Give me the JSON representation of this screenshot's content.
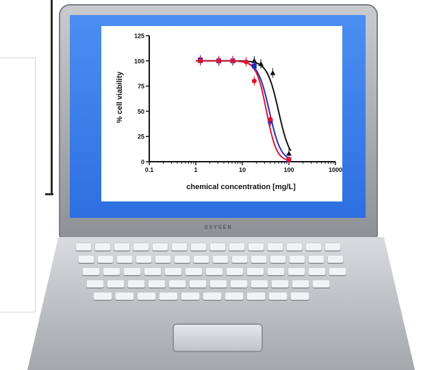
{
  "laptop": {
    "brand": "OXYGEN"
  },
  "chart_data": {
    "type": "line",
    "title": "",
    "xlabel": "chemical concentration [mg/L]",
    "ylabel": "% cell viability",
    "xscale": "log",
    "xlim": [
      0.1,
      1000
    ],
    "ylim": [
      0,
      125
    ],
    "x_ticks": [
      "0.1",
      "1",
      "10",
      "100",
      "1000"
    ],
    "y_ticks": [
      "0",
      "25",
      "50",
      "75",
      "100",
      "125"
    ],
    "grid": false,
    "legend": "none",
    "series": [
      {
        "color": "#111111",
        "marker": "triangle",
        "ic50": 60,
        "hill": 3.5,
        "x": [
          1.25,
          3.125,
          6.25,
          18,
          25,
          45,
          100
        ],
        "y": [
          100,
          100,
          100,
          100,
          97,
          88,
          8
        ]
      },
      {
        "color": "#1f2dbf",
        "marker": "square",
        "ic50": 38,
        "hill": 3.5,
        "x": [
          1.25,
          3.125,
          6.25,
          18,
          40,
          100
        ],
        "y": [
          101,
          100,
          100,
          95,
          40,
          2
        ]
      },
      {
        "color": "#e0142c",
        "marker": "circle",
        "ic50": 33,
        "hill": 4,
        "x": [
          1.25,
          3.125,
          6.25,
          12,
          18,
          40,
          100
        ],
        "y": [
          100,
          100,
          100,
          99,
          80,
          42,
          2
        ]
      }
    ]
  }
}
